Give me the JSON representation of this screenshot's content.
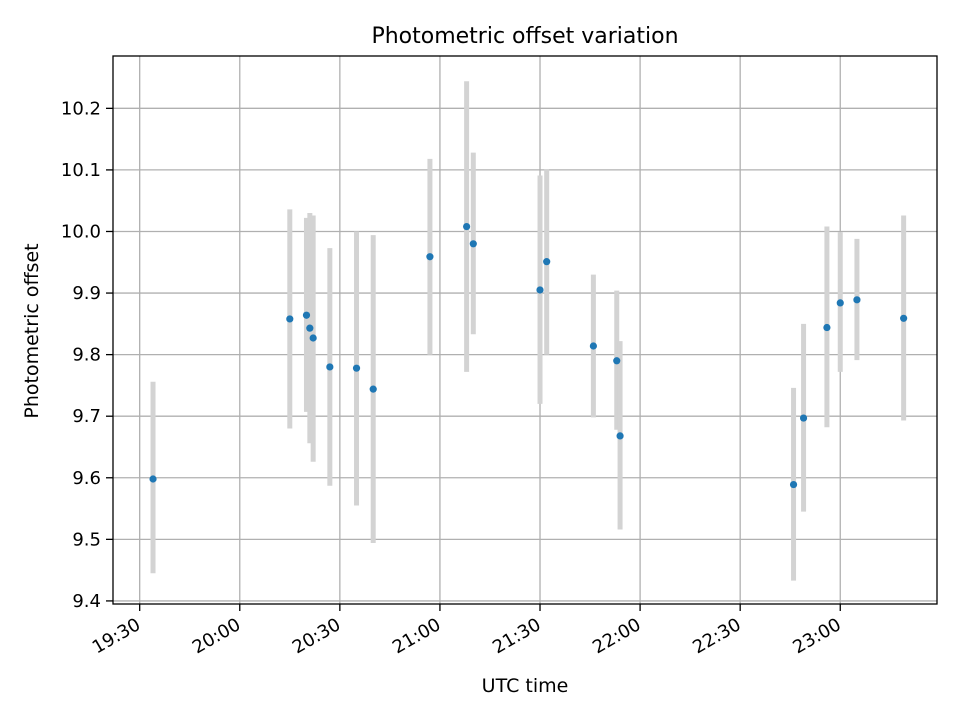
{
  "chart_data": {
    "type": "scatter",
    "title": "Photometric offset variation",
    "xlabel": "UTC time",
    "ylabel": "Photometric offset",
    "x_tick_labels": [
      "19:30",
      "20:00",
      "20:30",
      "21:00",
      "21:30",
      "22:00",
      "22:30",
      "23:00"
    ],
    "x_tick_minutes": [
      1170,
      1200,
      1230,
      1260,
      1290,
      1320,
      1350,
      1380
    ],
    "xlim": [
      "19:22",
      "23:29"
    ],
    "y_ticks": [
      9.4,
      9.5,
      9.6,
      9.7,
      9.8,
      9.9,
      10.0,
      10.1,
      10.2
    ],
    "y_tick_labels": [
      "9.4",
      "9.5",
      "9.6",
      "9.7",
      "9.8",
      "9.9",
      "10.0",
      "10.1",
      "10.2"
    ],
    "ylim": [
      9.395,
      10.285
    ],
    "grid": true,
    "colors": {
      "point": "#1f77b4",
      "errorbar": "#d3d3d3",
      "grid": "#b0b0b0"
    },
    "points": [
      {
        "x": "19:34",
        "y": 9.598,
        "lo": 9.445,
        "hi": 9.756
      },
      {
        "x": "20:15",
        "y": 9.858,
        "lo": 9.68,
        "hi": 10.036
      },
      {
        "x": "20:20",
        "y": 9.864,
        "lo": 9.707,
        "hi": 10.022
      },
      {
        "x": "20:21",
        "y": 9.843,
        "lo": 9.656,
        "hi": 10.03
      },
      {
        "x": "20:22",
        "y": 9.827,
        "lo": 9.626,
        "hi": 10.026
      },
      {
        "x": "20:27",
        "y": 9.78,
        "lo": 9.587,
        "hi": 9.973
      },
      {
        "x": "20:35",
        "y": 9.778,
        "lo": 9.555,
        "hi": 10.0
      },
      {
        "x": "20:40",
        "y": 9.744,
        "lo": 9.494,
        "hi": 9.994
      },
      {
        "x": "20:57",
        "y": 9.959,
        "lo": 9.8,
        "hi": 10.118
      },
      {
        "x": "21:08",
        "y": 10.008,
        "lo": 9.772,
        "hi": 10.244
      },
      {
        "x": "21:10",
        "y": 9.98,
        "lo": 9.833,
        "hi": 10.128
      },
      {
        "x": "21:30",
        "y": 9.905,
        "lo": 9.72,
        "hi": 10.091
      },
      {
        "x": "21:32",
        "y": 9.951,
        "lo": 9.8,
        "hi": 10.101
      },
      {
        "x": "21:46",
        "y": 9.814,
        "lo": 9.698,
        "hi": 9.93
      },
      {
        "x": "21:53",
        "y": 9.79,
        "lo": 9.678,
        "hi": 9.904
      },
      {
        "x": "21:54",
        "y": 9.668,
        "lo": 9.516,
        "hi": 9.822
      },
      {
        "x": "22:46",
        "y": 9.589,
        "lo": 9.433,
        "hi": 9.746
      },
      {
        "x": "22:49",
        "y": 9.697,
        "lo": 9.545,
        "hi": 9.85
      },
      {
        "x": "22:56",
        "y": 9.844,
        "lo": 9.682,
        "hi": 10.008
      },
      {
        "x": "23:00",
        "y": 9.884,
        "lo": 9.772,
        "hi": 9.999
      },
      {
        "x": "23:05",
        "y": 9.889,
        "lo": 9.791,
        "hi": 9.988
      },
      {
        "x": "23:19",
        "y": 9.859,
        "lo": 9.693,
        "hi": 10.026
      }
    ]
  }
}
